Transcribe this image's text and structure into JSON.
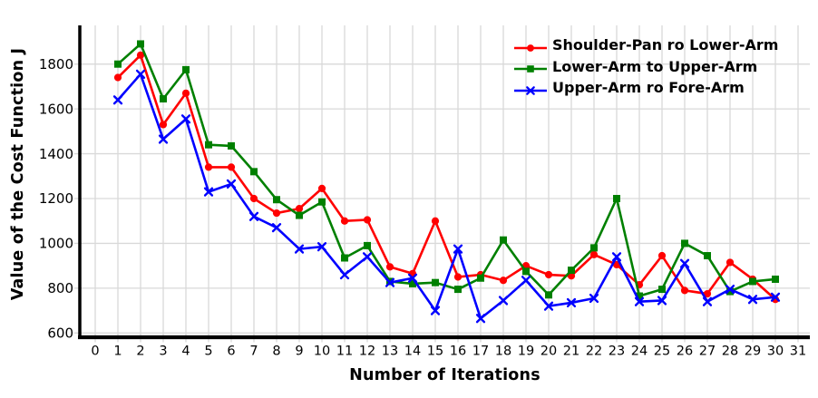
{
  "chart_data": {
    "type": "line",
    "title": "",
    "xlabel": "Number of Iterations",
    "ylabel": "Value of the Cost Function J",
    "x_tick_labels": [
      0,
      1,
      2,
      3,
      4,
      5,
      6,
      7,
      8,
      9,
      10,
      11,
      12,
      13,
      14,
      15,
      16,
      17,
      18,
      19,
      20,
      21,
      22,
      23,
      24,
      25,
      26,
      27,
      28,
      29,
      30,
      31
    ],
    "y_tick_labels": [
      600,
      800,
      1000,
      1200,
      1400,
      1600,
      1800
    ],
    "xlim": [
      0,
      31.5
    ],
    "ylim": [
      600,
      1975
    ],
    "grid": true,
    "legend_position": "top-right",
    "x": [
      1,
      2,
      3,
      4,
      5,
      6,
      7,
      8,
      9,
      10,
      11,
      12,
      13,
      14,
      15,
      16,
      17,
      18,
      19,
      20,
      21,
      22,
      23,
      24,
      25,
      26,
      27,
      28,
      29,
      30
    ],
    "series": [
      {
        "name": "Shoulder-Pan ro Lower-Arm",
        "color": "#ff0000",
        "marker": "circle",
        "values": [
          1740,
          1840,
          1530,
          1670,
          1340,
          1340,
          1200,
          1135,
          1155,
          1245,
          1100,
          1105,
          895,
          865,
          1100,
          850,
          860,
          835,
          900,
          860,
          855,
          950,
          905,
          815,
          945,
          790,
          775,
          915,
          840,
          750
        ]
      },
      {
        "name": "Lower-Arm to Upper-Arm",
        "color": "#008000",
        "marker": "square",
        "values": [
          1800,
          1890,
          1645,
          1775,
          1440,
          1435,
          1320,
          1195,
          1125,
          1185,
          935,
          990,
          830,
          820,
          825,
          795,
          845,
          1015,
          875,
          770,
          880,
          980,
          1200,
          765,
          795,
          1000,
          945,
          785,
          830,
          840
        ]
      },
      {
        "name": "Upper-Arm ro Fore-Arm",
        "color": "#0000ff",
        "marker": "x",
        "values": [
          1640,
          1755,
          1465,
          1555,
          1230,
          1265,
          1120,
          1070,
          975,
          985,
          860,
          940,
          825,
          845,
          700,
          975,
          665,
          745,
          835,
          720,
          735,
          755,
          940,
          740,
          745,
          910,
          740,
          795,
          750,
          760
        ]
      }
    ],
    "colors": {
      "grid": "#d9d9d9",
      "axis": "#000000",
      "background": "#ffffff"
    }
  }
}
